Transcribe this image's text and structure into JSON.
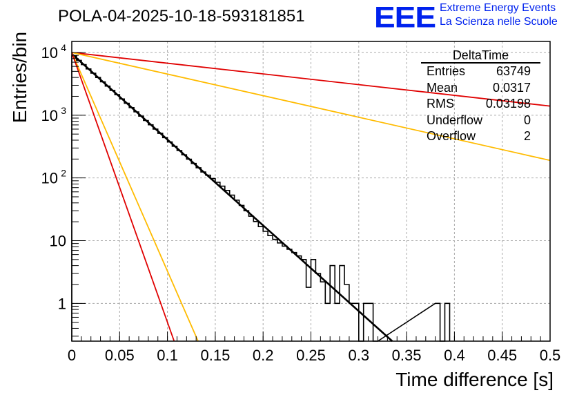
{
  "title": "POLA-04-2025-10-18-593181851",
  "logo": {
    "text": "EEE",
    "line1": "Extreme Energy Events",
    "line2": "La Scienza nelle Scuole",
    "color": "#0022ee"
  },
  "stats": {
    "name": "DeltaTime",
    "rows": [
      {
        "label": "Entries",
        "value": "63749"
      },
      {
        "label": "Mean",
        "value": "0.0317"
      },
      {
        "label": "RMS",
        "value": "0.03198"
      },
      {
        "label": "Underflow",
        "value": "0"
      },
      {
        "label": "Overflow",
        "value": "2"
      }
    ]
  },
  "chart_data": {
    "type": "line",
    "title": "POLA-04-2025-10-18-593181851",
    "xlabel": "Time difference [s]",
    "ylabel": "Entries/bin",
    "xlim": [
      0,
      0.5
    ],
    "ylim": [
      0.25,
      15000
    ],
    "yscale": "log",
    "grid": true,
    "xticks": [
      "0",
      "0.05",
      "0.1",
      "0.15",
      "0.2",
      "0.25",
      "0.3",
      "0.35",
      "0.4",
      "0.45",
      "0.5"
    ],
    "xtick_values": [
      0,
      0.05,
      0.1,
      0.15,
      0.2,
      0.25,
      0.3,
      0.35,
      0.4,
      0.45,
      0.5
    ],
    "yticks": [
      {
        "value": 1,
        "base": "1",
        "exp": ""
      },
      {
        "value": 10,
        "base": "10",
        "exp": ""
      },
      {
        "value": 100,
        "base": "10",
        "exp": "2"
      },
      {
        "value": 1000,
        "base": "10",
        "exp": "3"
      },
      {
        "value": 10000,
        "base": "10",
        "exp": "4"
      }
    ],
    "histogram": {
      "name": "DeltaTime",
      "bin_width": 0.005,
      "color": "#000000",
      "bins": [
        {
          "x0": 0.245,
          "x1": 0.25,
          "y": 1.8
        },
        {
          "x0": 0.25,
          "x1": 0.255,
          "y": 5.0
        },
        {
          "x0": 0.255,
          "x1": 0.26,
          "y": 3.0
        },
        {
          "x0": 0.26,
          "x1": 0.265,
          "y": 2.2
        },
        {
          "x0": 0.265,
          "x1": 0.27,
          "y": 1.0
        },
        {
          "x0": 0.27,
          "x1": 0.275,
          "y": 4.0
        },
        {
          "x0": 0.275,
          "x1": 0.28,
          "y": 1.0
        },
        {
          "x0": 0.28,
          "x1": 0.285,
          "y": 4.0
        },
        {
          "x0": 0.285,
          "x1": 0.29,
          "y": 2.0
        },
        {
          "x0": 0.29,
          "x1": 0.295,
          "y": 1.0
        },
        {
          "x0": 0.295,
          "x1": 0.3,
          "y": 1.0
        },
        {
          "x0": 0.3,
          "x1": 0.305,
          "y": 0.0
        },
        {
          "x0": 0.305,
          "x1": 0.31,
          "y": 1.0
        },
        {
          "x0": 0.31,
          "x1": 0.315,
          "y": 1.0
        },
        {
          "x0": 0.315,
          "x1": 0.32,
          "y": 0.0
        },
        {
          "x0": 0.38,
          "x1": 0.385,
          "y": 1.0
        },
        {
          "x0": 0.385,
          "x1": 0.39,
          "y": 0.0
        },
        {
          "x0": 0.39,
          "x1": 0.395,
          "y": 1.0
        }
      ],
      "shape": {
        "y0": 9500,
        "tau": 0.0317,
        "xmax": 0.245
      }
    },
    "series": [
      {
        "name": "fit",
        "color": "#000000",
        "x": [
          0,
          0.335
        ],
        "y": [
          9500,
          0.25
        ]
      },
      {
        "name": "red-slow",
        "color": "#e00000",
        "x": [
          0,
          0.5
        ],
        "y": [
          10000,
          1400
        ]
      },
      {
        "name": "yellow-slow",
        "color": "#ffbb00",
        "x": [
          0,
          0.5
        ],
        "y": [
          10000,
          190
        ]
      },
      {
        "name": "yellow-fast",
        "color": "#ffbb00",
        "x": [
          0,
          0.132
        ],
        "y": [
          10000,
          0.25
        ]
      },
      {
        "name": "red-fast",
        "color": "#e00000",
        "x": [
          0,
          0.107
        ],
        "y": [
          10000,
          0.25
        ]
      }
    ]
  }
}
